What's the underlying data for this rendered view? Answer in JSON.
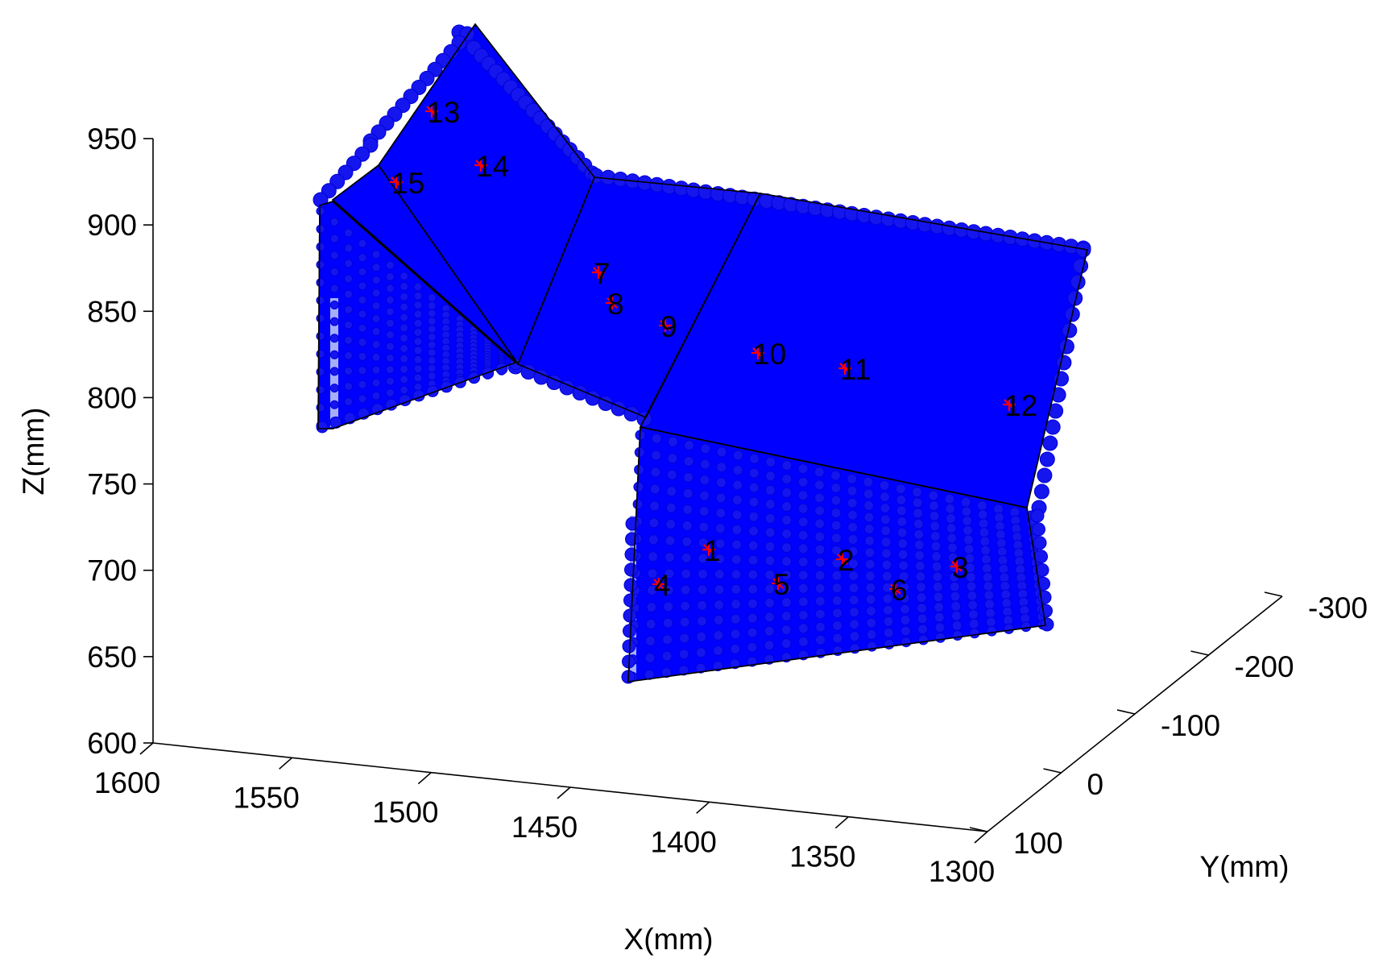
{
  "chart_data": {
    "type": "scatter3d",
    "title": "",
    "xlabel": "X(mm)",
    "ylabel": "Y(mm)",
    "zlabel": "Z(mm)",
    "x_ticks": [
      "1600",
      "1550",
      "1500",
      "1450",
      "1400",
      "1350",
      "1300"
    ],
    "y_ticks": [
      "100",
      "0",
      "-100",
      "-200",
      "-300"
    ],
    "z_ticks": [
      "950",
      "900",
      "850",
      "800",
      "750",
      "700",
      "650",
      "600"
    ],
    "xlim": [
      1300,
      1600
    ],
    "ylim": [
      -300,
      100
    ],
    "zlim": [
      600,
      950
    ],
    "colors": {
      "points": "#0000ff",
      "markers": "#ff0000",
      "panel_edges": "#000000"
    },
    "labeled_points": [
      {
        "label": "1"
      },
      {
        "label": "2"
      },
      {
        "label": "3"
      },
      {
        "label": "4"
      },
      {
        "label": "5"
      },
      {
        "label": "6"
      },
      {
        "label": "7"
      },
      {
        "label": "8"
      },
      {
        "label": "9"
      },
      {
        "label": "10"
      },
      {
        "label": "11"
      },
      {
        "label": "12"
      },
      {
        "label": "13"
      },
      {
        "label": "14"
      },
      {
        "label": "15"
      }
    ]
  }
}
